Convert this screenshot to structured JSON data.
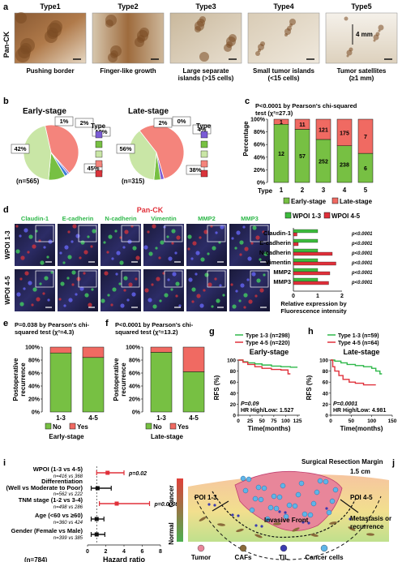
{
  "panel_a": {
    "letter": "a",
    "stain_label": "Pan-CK",
    "types": [
      "Type1",
      "Type2",
      "Type3",
      "Type4",
      "Type5"
    ],
    "captions": [
      [
        "Pushing border"
      ],
      [
        "Finger-like growth"
      ],
      [
        "Large separate",
        "islands (>15 cells)"
      ],
      [
        "Small tumor islands",
        "(<15 cells)"
      ],
      [
        "Tumor satellites",
        "(≥1 mm)"
      ]
    ],
    "scale_4mm": "4 mm"
  },
  "panel_b": {
    "letter": "b",
    "early_title": "Early-stage",
    "late_title": "Late-stage",
    "early_n": "(n=565)",
    "late_n": "(n=315)",
    "legend_title": "Type",
    "early_pct_labels": [
      "1%",
      "2%",
      "10%",
      "45%",
      "42%"
    ],
    "late_pct_labels": [
      "2%",
      "0%",
      "4%",
      "38%",
      "56%"
    ]
  },
  "panel_c": {
    "letter": "c",
    "title_line1": "P<0.0001 by Pearson's chi-squared",
    "title_line2": "test (χ²=27.3)",
    "ylabel": "Percentage",
    "yticks": [
      "0%",
      "20%",
      "40%",
      "60%",
      "80%",
      "100%"
    ],
    "xlabel": "Type",
    "categories": [
      "1",
      "2",
      "3",
      "4",
      "5"
    ],
    "early_counts": [
      "12",
      "57",
      "252",
      "238",
      "6"
    ],
    "late_counts": [
      "1",
      "11",
      "121",
      "175",
      "7"
    ],
    "legend_early": "Early-stage",
    "legend_late": "Late-stage"
  },
  "panel_d": {
    "letter": "d",
    "top_label": "Pan-CK",
    "markers": [
      "Claudin-1",
      "E-cadherin",
      "N-cadherin",
      "Vimentin",
      "MMP2",
      "MMP3"
    ],
    "rows": [
      "WPOI 1-3",
      "WPOI 4-5"
    ],
    "legend": [
      "WPOI 1-3",
      "WPOI 4-5"
    ],
    "pvals": [
      "p<0.0001",
      "p<0.0001",
      "p<0.0001",
      "p<0.0001",
      "p<0.0001",
      "p<0.0001"
    ],
    "xticks": [
      "0",
      "1",
      "2"
    ],
    "xlabel_line1": "Relative expression by",
    "xlabel_line2": "Fluorescence intensity"
  },
  "panel_e": {
    "letter": "e",
    "title_line1": "P=0.038 by Pearson's chi-",
    "title_line2": "squared test (χ²=4.3)",
    "ylabel_line1": "Postoperative",
    "ylabel_line2": "recurrence",
    "yticks": [
      "0%",
      "20%",
      "40%",
      "60%",
      "80%",
      "100%"
    ],
    "categories": [
      "1-3",
      "4-5"
    ],
    "legend": [
      "No",
      "Yes"
    ],
    "stage": "Early-stage"
  },
  "panel_f": {
    "letter": "f",
    "title_line1": "P<0.0001 by Pearson's chi-",
    "title_line2": "squared test (χ²=13.2)",
    "ylabel_line1": "Postoperative",
    "ylabel_line2": "recurrence",
    "yticks": [
      "0%",
      "20%",
      "40%",
      "60%",
      "80%",
      "100%"
    ],
    "categories": [
      "1-3",
      "4-5"
    ],
    "legend": [
      "No",
      "Yes"
    ],
    "stage": "Late-stage"
  },
  "panel_g": {
    "letter": "g",
    "legend": [
      "Type 1-3 (n=298)",
      "Type 4-5 (n=220)"
    ],
    "title": "Early-stage",
    "ylabel": "RFS (%)",
    "yticks": [
      "0",
      "20",
      "40",
      "60",
      "80",
      "100"
    ],
    "xticks": [
      "0",
      "25",
      "50",
      "75",
      "100",
      "125"
    ],
    "xlabel": "Time(months)",
    "pval": "P=0.09",
    "hr": "HR High/Low: 1.527"
  },
  "panel_h": {
    "letter": "h",
    "legend": [
      "Type 1-3 (n=59)",
      "Type 4-5 (n=64)"
    ],
    "title": "Late-stage",
    "ylabel": "RFS (%)",
    "yticks": [
      "0",
      "20",
      "40",
      "60",
      "80",
      "100"
    ],
    "xticks": [
      "0",
      "50",
      "100",
      "150"
    ],
    "xlabel": "Time(months)",
    "pval": "P=0.0001",
    "hr": "HR High/Low: 4.981"
  },
  "panel_i": {
    "letter": "i",
    "rows": [
      {
        "label": "WPOI (1-3 vs 4-5)",
        "n": "n=416 vs 368",
        "p": "p=0.02"
      },
      {
        "label": "Differentiation",
        "label2": "(Well vs Moderate to Poor)",
        "n": "n=562 vs 222",
        "p": ""
      },
      {
        "label": "TNM stage (1-2 vs 3-4)",
        "n": "n=498 vs 286",
        "p": "p=0.0008"
      },
      {
        "label": "Age (<60 vs ≥60)",
        "n": "n=360 vs 424",
        "p": ""
      },
      {
        "label": "Gender (Female vs Male)",
        "n": "n=399 vs 385",
        "p": ""
      }
    ],
    "xticks": [
      "0",
      "2",
      "4",
      "6",
      "8"
    ],
    "xlabel": "Hazard ratio",
    "total_n": "(n=784)"
  },
  "panel_j": {
    "letter": "j",
    "margin_label": "Surgical Resection Margin",
    "margin_dist": "1.5 cm",
    "poi_left": "POI 1-3",
    "poi_right": "POI 4-5",
    "invasive_front": "Invasive Front",
    "metastasis_line1": "Metastasis or",
    "metastasis_line2": "recurrence",
    "axis_top": "Cancer",
    "axis_bottom": "Normal",
    "legend": [
      "Tumor",
      "CAFs",
      "TIL",
      "Cancer cells"
    ]
  },
  "chart_data": [
    {
      "type": "pie",
      "panel": "b",
      "title": "Early-stage",
      "categories": [
        "1",
        "2",
        "3",
        "4",
        "5"
      ],
      "values": [
        42,
        1,
        2,
        10,
        45
      ],
      "colors": [
        "#f4847c",
        "#7b5cd6",
        "#3a7fd6",
        "#77c043",
        "#c9e6a6"
      ]
    },
    {
      "type": "pie",
      "panel": "b",
      "title": "Late-stage",
      "categories": [
        "1",
        "2",
        "3",
        "4",
        "5"
      ],
      "values": [
        56,
        2,
        0,
        4,
        38
      ],
      "colors": [
        "#f4847c",
        "#7b5cd6",
        "#3a7fd6",
        "#77c043",
        "#c9e6a6"
      ]
    },
    {
      "type": "bar",
      "panel": "c",
      "stacked": true,
      "categories": [
        "1",
        "2",
        "3",
        "4",
        "5"
      ],
      "series": [
        {
          "name": "Early-stage",
          "values": [
            92,
            84,
            68,
            58,
            46
          ]
        },
        {
          "name": "Late-stage",
          "values": [
            8,
            16,
            32,
            42,
            54
          ]
        }
      ],
      "ylim": [
        0,
        100
      ]
    },
    {
      "type": "bar",
      "panel": "d",
      "orientation": "horizontal",
      "categories": [
        "Claudin-1",
        "E-cadherin",
        "N-cadherin",
        "Vimentin",
        "MMP2",
        "MMP3"
      ],
      "series": [
        {
          "name": "WPOI 1-3",
          "values": [
            1.0,
            1.0,
            1.0,
            1.0,
            1.0,
            1.0
          ]
        },
        {
          "name": "WPOI 4-5",
          "values": [
            0.15,
            0.2,
            1.6,
            1.75,
            1.5,
            1.45
          ]
        }
      ],
      "xlim": [
        0,
        2
      ]
    },
    {
      "type": "bar",
      "panel": "e",
      "stacked": true,
      "categories": [
        "1-3",
        "4-5"
      ],
      "series": [
        {
          "name": "No",
          "values": [
            91,
            84
          ]
        },
        {
          "name": "Yes",
          "values": [
            9,
            16
          ]
        }
      ],
      "ylim": [
        0,
        100
      ]
    },
    {
      "type": "bar",
      "panel": "f",
      "stacked": true,
      "categories": [
        "1-3",
        "4-5"
      ],
      "series": [
        {
          "name": "No",
          "values": [
            92,
            62
          ]
        },
        {
          "name": "Yes",
          "values": [
            8,
            38
          ]
        }
      ],
      "ylim": [
        0,
        100
      ]
    },
    {
      "type": "line",
      "panel": "g",
      "step": true,
      "series": [
        {
          "name": "Type 1-3 (n=298)",
          "x": [
            0,
            10,
            20,
            35,
            50,
            70,
            90,
            110,
            125
          ],
          "y": [
            100,
            97,
            95,
            93,
            91,
            89,
            88,
            87,
            87
          ]
        },
        {
          "name": "Type 4-5 (n=220)",
          "x": [
            0,
            10,
            20,
            35,
            50,
            70,
            90,
            105,
            110
          ],
          "y": [
            100,
            96,
            92,
            88,
            85,
            83,
            82,
            75,
            75
          ]
        }
      ],
      "xlim": [
        0,
        130
      ],
      "ylim": [
        0,
        100
      ]
    },
    {
      "type": "line",
      "panel": "h",
      "step": true,
      "series": [
        {
          "name": "Type 1-3 (n=59)",
          "x": [
            0,
            10,
            25,
            40,
            60,
            80,
            100,
            110,
            120,
            125
          ],
          "y": [
            100,
            98,
            95,
            92,
            90,
            88,
            85,
            80,
            75,
            75
          ]
        },
        {
          "name": "Type 4-5 (n=64)",
          "x": [
            0,
            5,
            10,
            20,
            30,
            45,
            60,
            80,
            100,
            110
          ],
          "y": [
            100,
            88,
            80,
            72,
            65,
            60,
            58,
            55,
            55,
            55
          ]
        }
      ],
      "xlim": [
        0,
        150
      ],
      "ylim": [
        0,
        100
      ]
    },
    {
      "type": "scatter",
      "panel": "i",
      "forest": true,
      "categories": [
        "WPOI (1-3 vs 4-5)",
        "Differentiation",
        "TNM stage (1-2 vs 3-4)",
        "Age (<60 vs ≥60)",
        "Gender (Female vs Male)"
      ],
      "hr": [
        2.2,
        1.1,
        3.2,
        1.0,
        1.0
      ],
      "ci_low": [
        1.0,
        0.4,
        1.3,
        0.4,
        0.4
      ],
      "ci_high": [
        4.0,
        2.6,
        6.8,
        1.8,
        1.9
      ],
      "xlim": [
        0,
        8
      ]
    }
  ]
}
